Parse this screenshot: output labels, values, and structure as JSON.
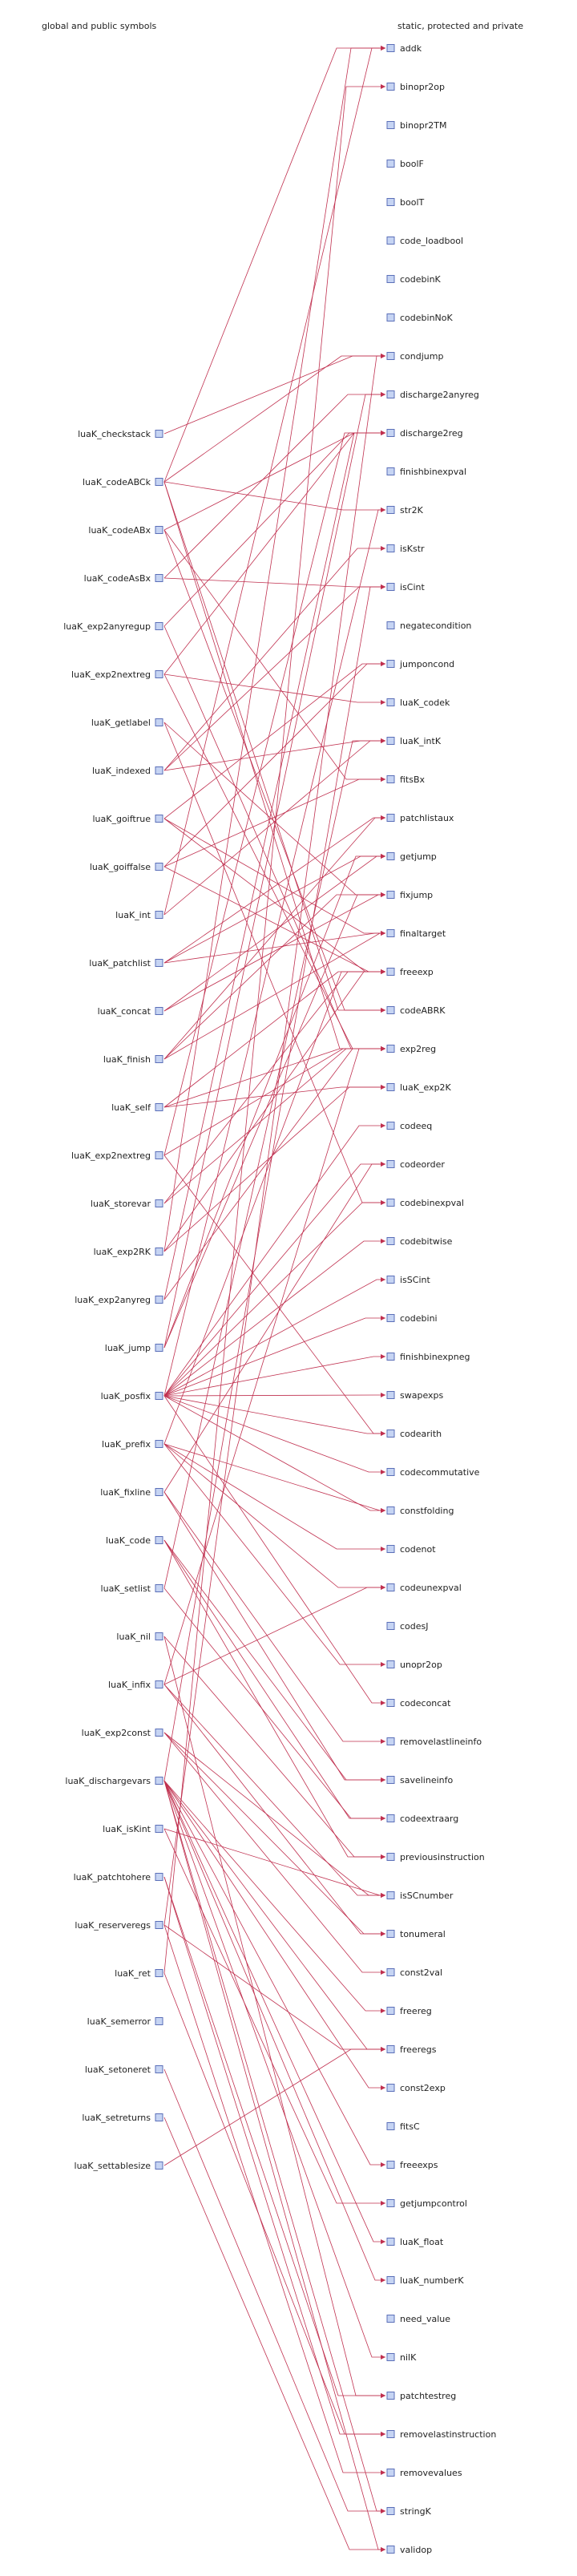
{
  "headers": {
    "left": "global and public symbols",
    "right": "static, protected and private"
  },
  "left_nodes": [
    "luaK_checkstack",
    "luaK_codeABCk",
    "luaK_codeABx",
    "luaK_codeAsBx",
    "luaK_exp2anyregup",
    "luaK_exp2nextreg",
    "luaK_getlabel",
    "luaK_indexed",
    "luaK_goiftrue",
    "luaK_goiffalse",
    "luaK_int",
    "luaK_patchlist",
    "luaK_concat",
    "luaK_finish",
    "luaK_self",
    "luaK_exp2nextreg",
    "luaK_storevar",
    "luaK_exp2RK",
    "luaK_exp2anyreg",
    "luaK_jump",
    "luaK_posfix",
    "luaK_prefix",
    "luaK_fixline",
    "luaK_code",
    "luaK_setlist",
    "luaK_nil",
    "luaK_infix",
    "luaK_exp2const",
    "luaK_dischargevars",
    "luaK_isKint",
    "luaK_patchtohere",
    "luaK_reserveregs",
    "luaK_ret",
    "luaK_semerror",
    "luaK_setoneret",
    "luaK_setreturns",
    "luaK_settablesize"
  ],
  "right_nodes": [
    "addk",
    "binopr2op",
    "binopr2TM",
    "boolF",
    "boolT",
    "code_loadbool",
    "codebinK",
    "codebinNoK",
    "condjump",
    "discharge2anyreg",
    "discharge2reg",
    "finishbinexpval",
    "str2K",
    "isKstr",
    "isCint",
    "negatecondition",
    "jumponcond",
    "luaK_codek",
    "luaK_intK",
    "fitsBx",
    "patchlistaux",
    "getjump",
    "fixjump",
    "finaltarget",
    "freeexp",
    "codeABRK",
    "exp2reg",
    "luaK_exp2K",
    "codeeq",
    "codeorder",
    "codebinexpval",
    "codebitwise",
    "isSCint",
    "codebini",
    "finishbinexpneg",
    "swapexps",
    "codearith",
    "codecommutative",
    "constfolding",
    "codenot",
    "codeunexpval",
    "codesJ",
    "unopr2op",
    "codeconcat",
    "removelastlineinfo",
    "savelineinfo",
    "codeextraarg",
    "previousinstruction",
    "isSCnumber",
    "tonumeral",
    "const2val",
    "freereg",
    "freeregs",
    "const2exp",
    "fitsC",
    "freeexps",
    "getjumpcontrol",
    "luaK_float",
    "luaK_numberK",
    "need_value",
    "nilK",
    "patchtestreg",
    "removelastinstruction",
    "removevalues",
    "stringK",
    "validop"
  ],
  "edges": [
    [
      1,
      0
    ],
    [
      1,
      25
    ],
    [
      1,
      26
    ],
    [
      1,
      8
    ],
    [
      1,
      12
    ],
    [
      2,
      25
    ],
    [
      2,
      19
    ],
    [
      3,
      9
    ],
    [
      4,
      10
    ],
    [
      4,
      26
    ],
    [
      5,
      26
    ],
    [
      5,
      10
    ],
    [
      6,
      22
    ],
    [
      7,
      13
    ],
    [
      7,
      14
    ],
    [
      7,
      18
    ],
    [
      8,
      16
    ],
    [
      8,
      23
    ],
    [
      8,
      24
    ],
    [
      9,
      16
    ],
    [
      9,
      24
    ],
    [
      10,
      18
    ],
    [
      10,
      0
    ],
    [
      11,
      20
    ],
    [
      11,
      23
    ],
    [
      12,
      21
    ],
    [
      12,
      22
    ],
    [
      13,
      23
    ],
    [
      13,
      22
    ],
    [
      14,
      24
    ],
    [
      14,
      26
    ],
    [
      14,
      27
    ],
    [
      15,
      26
    ],
    [
      15,
      10
    ],
    [
      16,
      26
    ],
    [
      16,
      24
    ],
    [
      17,
      27
    ],
    [
      17,
      0
    ],
    [
      18,
      26
    ],
    [
      18,
      10
    ],
    [
      19,
      21
    ],
    [
      19,
      22
    ],
    [
      20,
      28
    ],
    [
      20,
      29
    ],
    [
      20,
      30
    ],
    [
      20,
      31
    ],
    [
      20,
      33
    ],
    [
      20,
      36
    ],
    [
      20,
      37
    ],
    [
      20,
      38
    ],
    [
      20,
      43
    ],
    [
      20,
      34
    ],
    [
      20,
      35
    ],
    [
      20,
      32
    ],
    [
      20,
      12
    ],
    [
      21,
      38
    ],
    [
      21,
      39
    ],
    [
      21,
      40
    ],
    [
      21,
      42
    ],
    [
      21,
      24
    ],
    [
      22,
      44
    ],
    [
      22,
      45
    ],
    [
      23,
      45
    ],
    [
      23,
      47
    ],
    [
      23,
      46
    ],
    [
      24,
      46
    ],
    [
      24,
      18
    ],
    [
      25,
      47
    ],
    [
      25,
      61
    ],
    [
      26,
      48
    ],
    [
      26,
      26
    ],
    [
      26,
      49
    ],
    [
      27,
      50
    ],
    [
      27,
      49
    ],
    [
      28,
      51
    ],
    [
      28,
      52
    ],
    [
      28,
      53
    ],
    [
      28,
      55
    ],
    [
      28,
      60
    ],
    [
      28,
      57
    ],
    [
      28,
      58
    ],
    [
      28,
      64
    ],
    [
      28,
      65
    ],
    [
      29,
      48
    ],
    [
      29,
      56
    ],
    [
      30,
      61
    ],
    [
      30,
      62
    ],
    [
      31,
      52
    ],
    [
      31,
      63
    ],
    [
      32,
      62
    ],
    [
      32,
      1
    ],
    [
      34,
      64
    ],
    [
      35,
      65
    ],
    [
      36,
      52
    ],
    [
      0,
      8
    ],
    [
      2,
      10
    ],
    [
      3,
      14
    ],
    [
      5,
      17
    ],
    [
      9,
      19
    ],
    [
      11,
      21
    ],
    [
      6,
      30
    ],
    [
      17,
      24
    ],
    [
      19,
      9
    ],
    [
      26,
      40
    ],
    [
      27,
      48
    ],
    [
      28,
      14
    ],
    [
      22,
      29
    ],
    [
      15,
      36
    ],
    [
      13,
      20
    ],
    [
      31,
      8
    ]
  ]
}
